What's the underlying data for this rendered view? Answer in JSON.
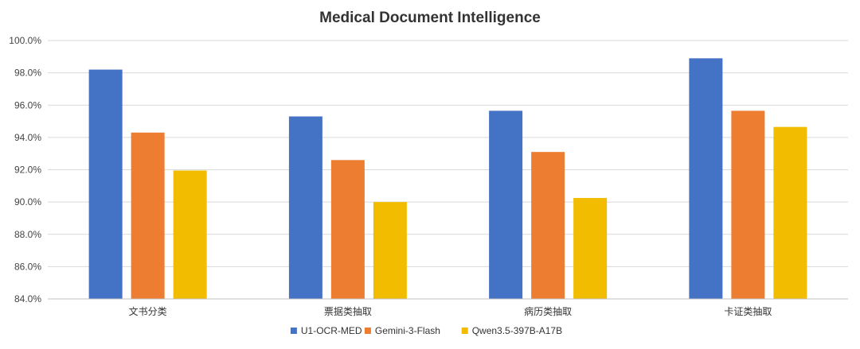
{
  "chart_data": {
    "type": "bar",
    "title": "Medical Document Intelligence",
    "categories": [
      "文书分类",
      "票据类抽取",
      "病历类抽取",
      "卡证类抽取"
    ],
    "series": [
      {
        "name": "U1-OCR-MED",
        "color": "#4472C4",
        "values": [
          98.2,
          95.3,
          95.65,
          98.9
        ]
      },
      {
        "name": "Gemini-3-Flash",
        "color": "#ED7D31",
        "values": [
          94.3,
          92.6,
          93.1,
          95.65
        ]
      },
      {
        "name": "Qwen3.5-397B-A17B",
        "color": "#F2BC00",
        "values": [
          91.95,
          90.0,
          90.25,
          94.65
        ]
      }
    ],
    "ylim": [
      84.0,
      100.0
    ],
    "yticks": [
      "84.0%",
      "86.0%",
      "88.0%",
      "90.0%",
      "92.0%",
      "94.0%",
      "96.0%",
      "98.0%",
      "100.0%"
    ],
    "ytick_values": [
      84,
      86,
      88,
      90,
      92,
      94,
      96,
      98,
      100
    ],
    "grid": true,
    "legend_position": "bottom"
  }
}
